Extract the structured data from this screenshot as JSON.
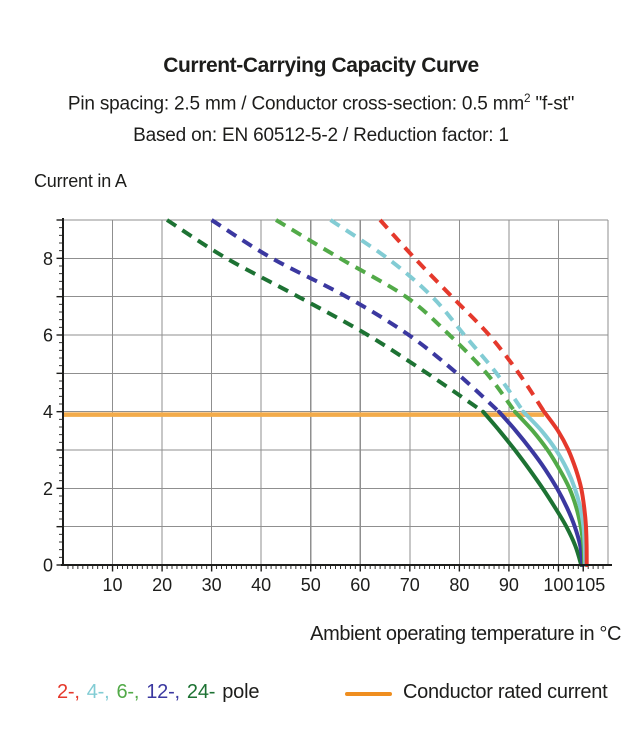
{
  "header": {
    "title": "Current-Carrying Capacity Curve",
    "subtitle_pre": "Pin spacing: 2.5 mm / Conductor cross-section: 0.5 mm",
    "subtitle_sup": "2",
    "subtitle_post": " \"f-st\"",
    "basis": "Based on: EN 60512-5-2 / Reduction factor: 1"
  },
  "axes": {
    "y_title": "Current in A",
    "x_title": "Ambient operating temperature in °C"
  },
  "legend": {
    "pole_items": [
      {
        "label": "2-,",
        "color": "#e5392c"
      },
      {
        "label": "4-,",
        "color": "#82ccd4"
      },
      {
        "label": "6-,",
        "color": "#52aa48"
      },
      {
        "label": "12-,",
        "color": "#3b38a0"
      },
      {
        "label": "24-",
        "color": "#1d7233"
      }
    ],
    "pole_suffix": "pole",
    "rated_label": "Conductor rated current",
    "rated_swatch_color": "#ef8e1f"
  },
  "colors": {
    "grid": "#8f8f8f",
    "axis": "#1d1d1b",
    "text": "#1d1d1b",
    "background": "#ffffff",
    "rated_line": "#f3ab4a"
  },
  "chart_data": {
    "type": "line",
    "title": "Current-Carrying Capacity Curve",
    "xlabel": "Ambient operating temperature in °C",
    "ylabel": "Current in A",
    "xlim": [
      0,
      110
    ],
    "ylim": [
      0,
      9
    ],
    "grid": true,
    "grid_x_step": 10,
    "grid_y_step": 1,
    "x_tick_labels": [
      {
        "v": 10,
        "label": "10"
      },
      {
        "v": 20,
        "label": "20"
      },
      {
        "v": 30,
        "label": "30"
      },
      {
        "v": 40,
        "label": "40"
      },
      {
        "v": 50,
        "label": "50"
      },
      {
        "v": 60,
        "label": "60"
      },
      {
        "v": 70,
        "label": "70"
      },
      {
        "v": 80,
        "label": "80"
      },
      {
        "v": 90,
        "label": "90"
      },
      {
        "v": 100,
        "label": "100"
      },
      {
        "v": 105,
        "label": "105",
        "dx": 7
      }
    ],
    "y_tick_labels": [
      {
        "v": 0,
        "label": "0"
      },
      {
        "v": 2,
        "label": "2"
      },
      {
        "v": 4,
        "label": "4"
      },
      {
        "v": 6,
        "label": "6"
      },
      {
        "v": 8,
        "label": "8"
      }
    ],
    "rated_line": {
      "value_A": 4,
      "t_start": 0,
      "t_end": 97.1,
      "label": "Conductor rated current"
    },
    "series": [
      {
        "name": "24-pole",
        "poles": 24,
        "color": "#1d7233",
        "dashed_points": [
          [
            21,
            9
          ],
          [
            33,
            8
          ],
          [
            47.5,
            7
          ],
          [
            61.5,
            6
          ],
          [
            73.5,
            5
          ],
          [
            84.8,
            4
          ]
        ],
        "solid_points": [
          [
            84.8,
            4
          ],
          [
            88.1,
            3.5
          ],
          [
            91.2,
            3
          ],
          [
            94.1,
            2.5
          ],
          [
            96.8,
            2
          ],
          [
            99.3,
            1.5
          ],
          [
            101.6,
            1
          ],
          [
            103.4,
            0.5
          ],
          [
            104.6,
            0
          ]
        ]
      },
      {
        "name": "12-pole",
        "poles": 12,
        "color": "#3b38a0",
        "dashed_points": [
          [
            30,
            9
          ],
          [
            42.2,
            8
          ],
          [
            57.2,
            7
          ],
          [
            69.8,
            6
          ],
          [
            79.5,
            5
          ],
          [
            88,
            4
          ]
        ],
        "solid_points": [
          [
            88,
            4
          ],
          [
            91.4,
            3.5
          ],
          [
            94.5,
            3
          ],
          [
            97.3,
            2.5
          ],
          [
            99.7,
            2
          ],
          [
            101.7,
            1.5
          ],
          [
            103.3,
            1
          ],
          [
            104.4,
            0.5
          ],
          [
            104.9,
            0
          ]
        ]
      },
      {
        "name": "6-pole",
        "poles": 6,
        "color": "#52aa48",
        "dashed_points": [
          [
            43,
            9
          ],
          [
            55.9,
            8
          ],
          [
            69.2,
            7
          ],
          [
            78,
            6
          ],
          [
            85.5,
            5
          ],
          [
            91.2,
            4
          ]
        ],
        "solid_points": [
          [
            91.2,
            4
          ],
          [
            94.8,
            3.5
          ],
          [
            97.8,
            3
          ],
          [
            100.2,
            2.5
          ],
          [
            102.2,
            2
          ],
          [
            103.6,
            1.5
          ],
          [
            104.5,
            1
          ],
          [
            105.05,
            0.5
          ],
          [
            105.2,
            0
          ]
        ]
      },
      {
        "name": "4-pole",
        "poles": 4,
        "color": "#82ccd4",
        "dashed_points": [
          [
            54,
            9
          ],
          [
            65.5,
            8
          ],
          [
            74.5,
            7
          ],
          [
            81,
            6
          ],
          [
            87.5,
            5
          ],
          [
            92.9,
            4
          ]
        ],
        "solid_points": [
          [
            92.9,
            4
          ],
          [
            96.6,
            3.5
          ],
          [
            99.5,
            3
          ],
          [
            101.7,
            2.5
          ],
          [
            103.3,
            2
          ],
          [
            104.4,
            1.5
          ],
          [
            105.05,
            1
          ],
          [
            105.3,
            0.5
          ],
          [
            105.4,
            0
          ]
        ]
      },
      {
        "name": "2-pole",
        "poles": 2,
        "color": "#e5392c",
        "dashed_points": [
          [
            64,
            9
          ],
          [
            71,
            8
          ],
          [
            78.5,
            7
          ],
          [
            86,
            6
          ],
          [
            92,
            5
          ],
          [
            97.1,
            4
          ]
        ],
        "solid_points": [
          [
            97.1,
            4
          ],
          [
            99.9,
            3.5
          ],
          [
            102,
            3
          ],
          [
            103.5,
            2.5
          ],
          [
            104.6,
            2
          ],
          [
            105.2,
            1.5
          ],
          [
            105.55,
            1
          ],
          [
            105.68,
            0.5
          ],
          [
            105.7,
            0
          ]
        ]
      }
    ]
  }
}
